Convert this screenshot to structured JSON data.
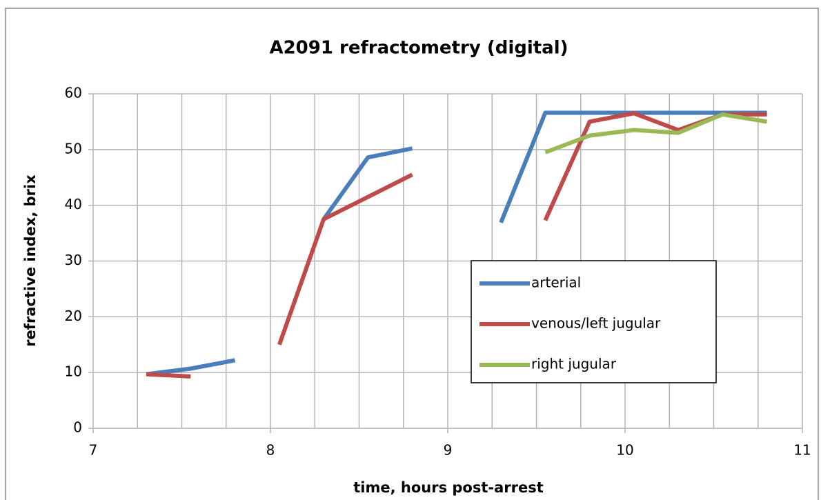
{
  "chart_data": {
    "type": "line",
    "title": "A2091 refractometry (digital)",
    "x_label": "time, hours post-arrest",
    "y_label": "refractive index, brix",
    "xlim": [
      7,
      11
    ],
    "xticks": [
      7,
      8,
      9,
      10,
      11
    ],
    "ylim": [
      0,
      60
    ],
    "yticks": [
      0,
      10,
      20,
      30,
      40,
      50,
      60
    ],
    "xgrid": [
      7.25,
      7.5,
      7.75,
      8.25,
      8.5,
      8.75,
      9.25,
      9.5,
      9.75,
      10.25,
      10.5,
      10.75
    ],
    "grid": true,
    "legend": "right",
    "series": [
      {
        "name": "arterial",
        "color": "#4a7ebb",
        "x": [
          7.3,
          7.55,
          7.8,
          null,
          8.3,
          8.55,
          8.8,
          null,
          9.3,
          9.55,
          9.8,
          10.05,
          10.3,
          10.55,
          10.8
        ],
        "values": [
          9.7,
          10.7,
          12.2,
          null,
          37.5,
          48.6,
          50.2,
          null,
          36.9,
          56.6,
          56.6,
          56.6,
          56.6,
          56.6,
          56.6
        ]
      },
      {
        "name": "venous/left jugular",
        "color": "#be4b48",
        "x": [
          7.3,
          7.55,
          null,
          8.05,
          8.3,
          8.55,
          8.8,
          null,
          9.55,
          9.8,
          10.05,
          10.3,
          10.55,
          10.8
        ],
        "values": [
          9.7,
          9.3,
          null,
          15,
          37.5,
          41.5,
          45.5,
          null,
          37.3,
          55,
          56.5,
          53.5,
          56.3,
          56.3
        ]
      },
      {
        "name": "right jugular",
        "color": "#98b954",
        "x": [
          9.55,
          9.8,
          10.05,
          10.3,
          10.55,
          10.8
        ],
        "values": [
          49.5,
          52.5,
          53.5,
          53,
          56.3,
          55
        ]
      }
    ]
  }
}
